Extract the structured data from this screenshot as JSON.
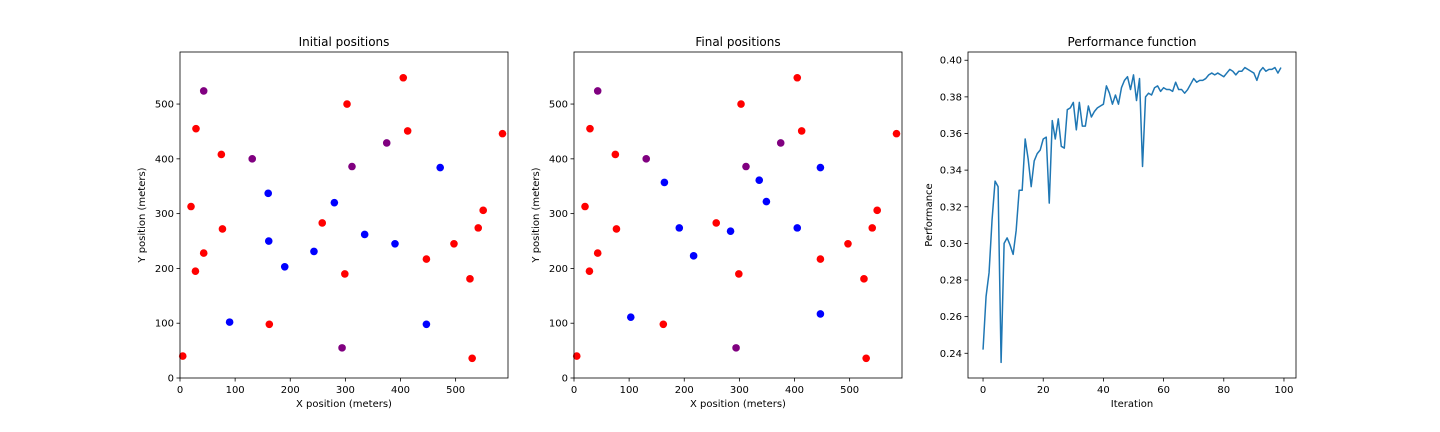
{
  "chart_data": [
    {
      "type": "scatter",
      "title": "Initial positions",
      "xlabel": "X position (meters)",
      "ylabel": "Y position (meters)",
      "xlim": [
        0,
        595
      ],
      "ylim": [
        0,
        595
      ],
      "xticks": [
        0,
        100,
        200,
        300,
        400,
        500
      ],
      "yticks": [
        0,
        100,
        200,
        300,
        400,
        500
      ],
      "grid": false,
      "colors": {
        "red": "#ff0000",
        "blue": "#0000ff",
        "purple": "#800080"
      },
      "series": [
        {
          "color": "red",
          "points": [
            [
              5,
              40
            ],
            [
              20,
              313
            ],
            [
              28,
              195
            ],
            [
              29,
              455
            ],
            [
              43,
              228
            ],
            [
              75,
              408
            ],
            [
              77,
              272
            ],
            [
              162,
              98
            ],
            [
              258,
              283
            ],
            [
              299,
              190
            ],
            [
              303,
              500
            ],
            [
              405,
              548
            ],
            [
              413,
              451
            ],
            [
              447,
              217
            ],
            [
              497,
              245
            ],
            [
              526,
              181
            ],
            [
              530,
              36
            ],
            [
              541,
              274
            ],
            [
              550,
              306
            ],
            [
              585,
              446
            ]
          ]
        },
        {
          "color": "blue",
          "points": [
            [
              90,
              102
            ],
            [
              160,
              337
            ],
            [
              161,
              250
            ],
            [
              190,
              203
            ],
            [
              243,
              231
            ],
            [
              280,
              320
            ],
            [
              335,
              262
            ],
            [
              390,
              245
            ],
            [
              447,
              98
            ],
            [
              472,
              384
            ]
          ]
        },
        {
          "color": "purple",
          "points": [
            [
              43,
              524
            ],
            [
              131,
              400
            ],
            [
              294,
              55
            ],
            [
              312,
              386
            ],
            [
              375,
              429
            ]
          ]
        }
      ]
    },
    {
      "type": "scatter",
      "title": "Final positions",
      "xlabel": "X position (meters)",
      "ylabel": "Y position (meters)",
      "xlim": [
        0,
        595
      ],
      "ylim": [
        0,
        595
      ],
      "xticks": [
        0,
        100,
        200,
        300,
        400,
        500
      ],
      "yticks": [
        0,
        100,
        200,
        300,
        400,
        500
      ],
      "grid": false,
      "colors": {
        "red": "#ff0000",
        "blue": "#0000ff",
        "purple": "#800080"
      },
      "series": [
        {
          "color": "red",
          "points": [
            [
              5,
              40
            ],
            [
              20,
              313
            ],
            [
              28,
              195
            ],
            [
              29,
              455
            ],
            [
              43,
              228
            ],
            [
              75,
              408
            ],
            [
              77,
              272
            ],
            [
              162,
              98
            ],
            [
              258,
              283
            ],
            [
              299,
              190
            ],
            [
              303,
              500
            ],
            [
              405,
              548
            ],
            [
              413,
              451
            ],
            [
              447,
              217
            ],
            [
              497,
              245
            ],
            [
              526,
              181
            ],
            [
              530,
              36
            ],
            [
              541,
              274
            ],
            [
              550,
              306
            ],
            [
              585,
              446
            ]
          ]
        },
        {
          "color": "blue",
          "points": [
            [
              103,
              111
            ],
            [
              164,
              357
            ],
            [
              191,
              274
            ],
            [
              217,
              223
            ],
            [
              284,
              268
            ],
            [
              336,
              361
            ],
            [
              349,
              322
            ],
            [
              405,
              274
            ],
            [
              447,
              117
            ],
            [
              447,
              384
            ]
          ]
        },
        {
          "color": "purple",
          "points": [
            [
              43,
              524
            ],
            [
              131,
              400
            ],
            [
              294,
              55
            ],
            [
              312,
              386
            ],
            [
              375,
              429
            ]
          ]
        }
      ]
    },
    {
      "type": "line",
      "title": "Performance function",
      "xlabel": "Iteration",
      "ylabel": "Performance",
      "xlim": [
        -5,
        104
      ],
      "ylim": [
        0.2265,
        0.4045
      ],
      "xticks": [
        0,
        20,
        40,
        60,
        80,
        100
      ],
      "yticks": [
        "0.24",
        "0.26",
        "0.28",
        "0.30",
        "0.32",
        "0.34",
        "0.36",
        "0.38",
        "0.40"
      ],
      "grid": false,
      "line_color": "#1f77b4",
      "x": [
        0,
        1,
        2,
        3,
        4,
        5,
        6,
        7,
        8,
        9,
        10,
        11,
        12,
        13,
        14,
        15,
        16,
        17,
        18,
        19,
        20,
        21,
        22,
        23,
        24,
        25,
        26,
        27,
        28,
        29,
        30,
        31,
        32,
        33,
        34,
        35,
        36,
        37,
        38,
        39,
        40,
        41,
        42,
        43,
        44,
        45,
        46,
        47,
        48,
        49,
        50,
        51,
        52,
        53,
        54,
        55,
        56,
        57,
        58,
        59,
        60,
        61,
        62,
        63,
        64,
        65,
        66,
        67,
        68,
        69,
        70,
        71,
        72,
        73,
        74,
        75,
        76,
        77,
        78,
        79,
        80,
        81,
        82,
        83,
        84,
        85,
        86,
        87,
        88,
        89,
        90,
        91,
        92,
        93,
        94,
        95,
        96,
        97,
        98,
        99
      ],
      "y": [
        0.242,
        0.271,
        0.284,
        0.313,
        0.334,
        0.331,
        0.235,
        0.3,
        0.303,
        0.299,
        0.294,
        0.307,
        0.329,
        0.329,
        0.357,
        0.346,
        0.331,
        0.345,
        0.349,
        0.351,
        0.357,
        0.358,
        0.322,
        0.367,
        0.357,
        0.368,
        0.353,
        0.352,
        0.373,
        0.374,
        0.377,
        0.362,
        0.377,
        0.364,
        0.364,
        0.375,
        0.369,
        0.372,
        0.374,
        0.375,
        0.376,
        0.386,
        0.382,
        0.376,
        0.381,
        0.376,
        0.385,
        0.389,
        0.391,
        0.384,
        0.392,
        0.378,
        0.39,
        0.342,
        0.38,
        0.382,
        0.381,
        0.385,
        0.386,
        0.383,
        0.385,
        0.384,
        0.384,
        0.383,
        0.388,
        0.384,
        0.384,
        0.382,
        0.384,
        0.387,
        0.39,
        0.388,
        0.389,
        0.389,
        0.39,
        0.392,
        0.393,
        0.392,
        0.393,
        0.392,
        0.391,
        0.393,
        0.395,
        0.394,
        0.392,
        0.394,
        0.394,
        0.396,
        0.395,
        0.394,
        0.393,
        0.389,
        0.394,
        0.396,
        0.394,
        0.395,
        0.395,
        0.396,
        0.393,
        0.396
      ]
    }
  ]
}
